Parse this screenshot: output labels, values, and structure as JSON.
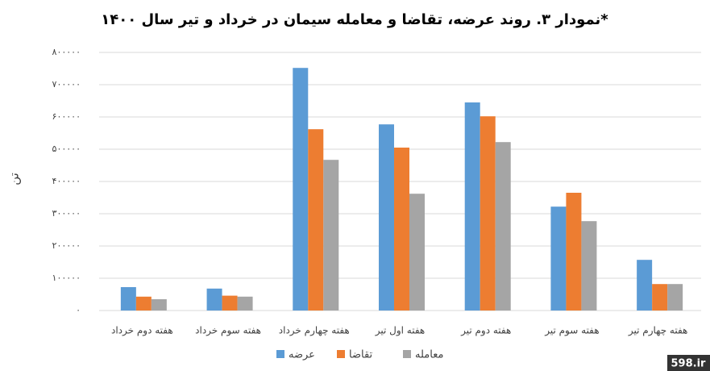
{
  "chart_data": {
    "type": "bar",
    "title": "نمودار ۳. روند عرضه، تقاضا و معامله سیمان در خرداد و تیر سال ۱۴۰۰*",
    "y_label": "تن",
    "categories": [
      "هفته دوم خرداد",
      "هفته سوم خرداد",
      "هفته چهارم خرداد",
      "هفته اول تیر",
      "هفته دوم تیر",
      "هفته سوم تیر",
      "هفته چهارم تیر"
    ],
    "series": [
      {
        "name": "عرضه",
        "color": "#5b9bd5",
        "values": [
          72500,
          68000,
          752000,
          577000,
          645000,
          322000,
          157000
        ]
      },
      {
        "name": "تقاضا",
        "color": "#ed7d31",
        "values": [
          43000,
          46000,
          562000,
          505000,
          602000,
          365000,
          82000
        ]
      },
      {
        "name": "معامله",
        "color": "#a5a5a5",
        "values": [
          35000,
          43000,
          467000,
          362000,
          522000,
          277000,
          82000
        ]
      }
    ],
    "ylim": [
      0,
      800000
    ],
    "yticks": [
      {
        "value": 0,
        "label": "۰"
      },
      {
        "value": 100000,
        "label": "۱۰۰۰۰۰"
      },
      {
        "value": 200000,
        "label": "۲۰۰۰۰۰"
      },
      {
        "value": 300000,
        "label": "۳۰۰۰۰۰"
      },
      {
        "value": 400000,
        "label": "۴۰۰۰۰۰"
      },
      {
        "value": 500000,
        "label": "۵۰۰۰۰۰"
      },
      {
        "value": 600000,
        "label": "۶۰۰۰۰۰"
      },
      {
        "value": 700000,
        "label": "۷۰۰۰۰۰"
      },
      {
        "value": 800000,
        "label": "۸۰۰۰۰۰"
      }
    ],
    "grid": true,
    "legend": "bottom",
    "watermark": "598.ir"
  }
}
